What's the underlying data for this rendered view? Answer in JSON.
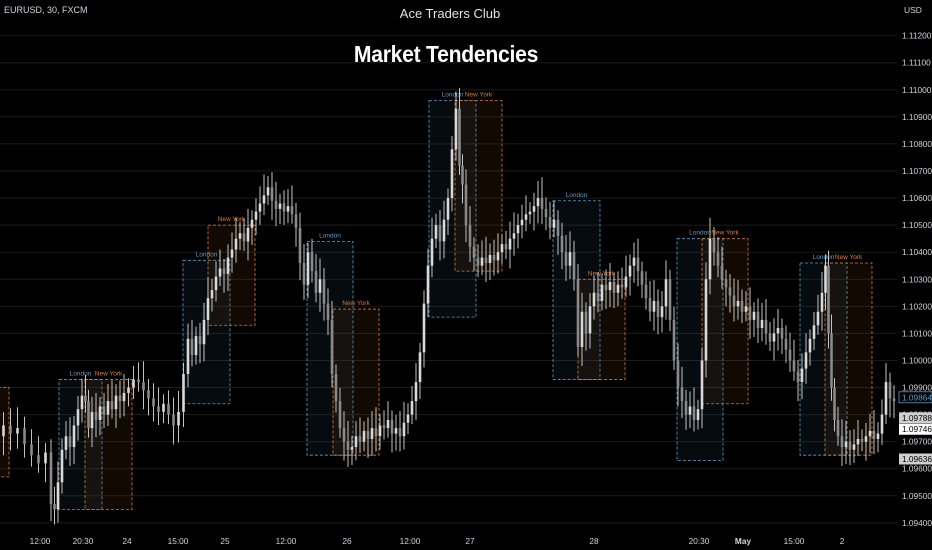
{
  "header": {
    "symbol": "EURUSD, 30, FXCM",
    "brand": "Ace Traders Club",
    "title": "Market Tendencies",
    "currency": "USD"
  },
  "colors": {
    "background": "#000000",
    "candle": "#d9d9d9",
    "london": "#5b9fc7",
    "new_york": "#e07a2f",
    "grid": "#1c1c1c",
    "axis_text": "#d1d4dc"
  },
  "chart_data": {
    "type": "candlestick",
    "title": "Market Tendencies",
    "y_axis": {
      "unit": "USD",
      "range": [
        1.0937,
        1.1128
      ],
      "ticks": [
        1.094,
        1.095,
        1.096,
        1.097,
        1.098,
        1.099,
        1.1,
        1.101,
        1.102,
        1.103,
        1.104,
        1.105,
        1.106,
        1.107,
        1.108,
        1.109,
        1.11,
        1.111,
        1.112
      ],
      "tick_labels": [
        "1.09400",
        "1.09500",
        "1.09600",
        "1.09700",
        "1.09800",
        "1.09900",
        "1.10000",
        "1.10100",
        "1.10200",
        "1.10300",
        "1.10400",
        "1.10500",
        "1.10600",
        "1.10700",
        "1.10800",
        "1.10900",
        "1.11000",
        "1.11100",
        "1.11200"
      ]
    },
    "x_axis": {
      "labels": [
        "12:00",
        "20:30",
        "24",
        "15:00",
        "25",
        "12:00",
        "26",
        "12:00",
        "27",
        "28",
        "20:30",
        "May",
        "15:00",
        "2"
      ],
      "bold": [
        "May"
      ]
    },
    "price_markers": [
      {
        "value": 1.09864,
        "label": "1.09864",
        "style": "outline"
      },
      {
        "value": 1.09788,
        "label": "1.09788",
        "style": "gray"
      },
      {
        "value": 1.09746,
        "label": "1.09746",
        "style": "white"
      },
      {
        "value": 1.09636,
        "label": "1.09636",
        "style": "gray"
      }
    ],
    "series": [
      {
        "name": "EURUSD",
        "points": [
          [
            0,
            1.0972
          ],
          [
            7,
            1.0976
          ],
          [
            14,
            1.0973
          ],
          [
            21,
            1.0975
          ],
          [
            28,
            1.0969
          ],
          [
            35,
            1.0965
          ],
          [
            42,
            1.0962
          ],
          [
            49,
            1.0966
          ],
          [
            53,
            1.0947
          ],
          [
            56,
            1.0945
          ],
          [
            60,
            1.0955
          ],
          [
            64,
            1.0967
          ],
          [
            68,
            1.0972
          ],
          [
            72,
            1.0968
          ],
          [
            76,
            1.0976
          ],
          [
            80,
            1.0982
          ],
          [
            84,
            1.0987
          ],
          [
            87,
            1.0985
          ],
          [
            90,
            1.0975
          ],
          [
            94,
            1.0981
          ],
          [
            98,
            1.0978
          ],
          [
            102,
            1.0983
          ],
          [
            106,
            1.098
          ],
          [
            110,
            1.0985
          ],
          [
            114,
            1.0982
          ],
          [
            118,
            1.0987
          ],
          [
            122,
            1.0985
          ],
          [
            126,
            1.0988
          ],
          [
            131,
            1.099
          ],
          [
            136,
            1.0993
          ],
          [
            141,
            1.0992
          ],
          [
            146,
            1.0989
          ],
          [
            151,
            1.0986
          ],
          [
            156,
            1.0983
          ],
          [
            161,
            1.0981
          ],
          [
            166,
            1.0984
          ],
          [
            171,
            1.098
          ],
          [
            176,
            1.0976
          ],
          [
            181,
            1.0981
          ],
          [
            186,
            1.0995
          ],
          [
            190,
            1.1008
          ],
          [
            194,
            1.1002
          ],
          [
            198,
            1.1009
          ],
          [
            202,
            1.1006
          ],
          [
            206,
            1.1015
          ],
          [
            210,
            1.1023
          ],
          [
            214,
            1.1026
          ],
          [
            218,
            1.1031
          ],
          [
            222,
            1.1034
          ],
          [
            226,
            1.1032
          ],
          [
            230,
            1.1038
          ],
          [
            234,
            1.1041
          ],
          [
            238,
            1.1045
          ],
          [
            242,
            1.1047
          ],
          [
            246,
            1.1044
          ],
          [
            250,
            1.1049
          ],
          [
            254,
            1.1052
          ],
          [
            258,
            1.1055
          ],
          [
            262,
            1.1058
          ],
          [
            266,
            1.1061
          ],
          [
            270,
            1.1064
          ],
          [
            274,
            1.1059
          ],
          [
            278,
            1.1056
          ],
          [
            282,
            1.1058
          ],
          [
            286,
            1.1055
          ],
          [
            290,
            1.1057
          ],
          [
            294,
            1.1054
          ],
          [
            298,
            1.1049
          ],
          [
            302,
            1.1036
          ],
          [
            306,
            1.1028
          ],
          [
            310,
            1.104
          ],
          [
            314,
            1.1033
          ],
          [
            318,
            1.1025
          ],
          [
            322,
            1.103
          ],
          [
            326,
            1.1021
          ],
          [
            330,
            1.1015
          ],
          [
            334,
            1.0995
          ],
          [
            338,
            1.0985
          ],
          [
            342,
            1.0975
          ],
          [
            346,
            1.097
          ],
          [
            350,
            1.0967
          ],
          [
            354,
            1.0968
          ],
          [
            358,
            1.0972
          ],
          [
            362,
            1.097
          ],
          [
            366,
            1.0974
          ],
          [
            370,
            1.0971
          ],
          [
            374,
            1.0975
          ],
          [
            378,
            1.0972
          ],
          [
            382,
            1.0976
          ],
          [
            386,
            1.0975
          ],
          [
            390,
            1.0978
          ],
          [
            394,
            1.0973
          ],
          [
            398,
            1.0975
          ],
          [
            402,
            1.0972
          ],
          [
            406,
            1.0977
          ],
          [
            410,
            1.098
          ],
          [
            414,
            1.0985
          ],
          [
            418,
            1.0992
          ],
          [
            422,
            1.1003
          ],
          [
            426,
            1.1021
          ],
          [
            430,
            1.1035
          ],
          [
            434,
            1.1045
          ],
          [
            438,
            1.105
          ],
          [
            442,
            1.1044
          ],
          [
            446,
            1.1052
          ],
          [
            450,
            1.106
          ],
          [
            454,
            1.1078
          ],
          [
            458,
            1.1093
          ],
          [
            461,
            1.1072
          ],
          [
            464,
            1.1065
          ],
          [
            468,
            1.105
          ],
          [
            472,
            1.1042
          ],
          [
            476,
            1.1038
          ],
          [
            480,
            1.1035
          ],
          [
            484,
            1.1038
          ],
          [
            488,
            1.1036
          ],
          [
            492,
            1.1039
          ],
          [
            496,
            1.1037
          ],
          [
            500,
            1.104
          ],
          [
            504,
            1.1043
          ],
          [
            508,
            1.1041
          ],
          [
            512,
            1.1045
          ],
          [
            516,
            1.1047
          ],
          [
            520,
            1.105
          ],
          [
            524,
            1.1052
          ],
          [
            528,
            1.1054
          ],
          [
            532,
            1.1055
          ],
          [
            536,
            1.1057
          ],
          [
            540,
            1.106
          ],
          [
            544,
            1.1056
          ],
          [
            548,
            1.1053
          ],
          [
            552,
            1.1049
          ],
          [
            556,
            1.1052
          ],
          [
            560,
            1.1046
          ],
          [
            564,
            1.104
          ],
          [
            568,
            1.1035
          ],
          [
            572,
            1.104
          ],
          [
            576,
            1.103
          ],
          [
            580,
            1.1005
          ],
          [
            584,
            1.1018
          ],
          [
            588,
            1.101
          ],
          [
            592,
            1.102
          ],
          [
            596,
            1.1025
          ],
          [
            600,
            1.1022
          ],
          [
            604,
            1.1028
          ],
          [
            608,
            1.1026
          ],
          [
            612,
            1.1029
          ],
          [
            616,
            1.1025
          ],
          [
            620,
            1.1028
          ],
          [
            624,
            1.1027
          ],
          [
            628,
            1.1031
          ],
          [
            632,
            1.1035
          ],
          [
            636,
            1.1038
          ],
          [
            640,
            1.1033
          ],
          [
            644,
            1.1028
          ],
          [
            648,
            1.1023
          ],
          [
            652,
            1.1018
          ],
          [
            656,
            1.1022
          ],
          [
            660,
            1.1016
          ],
          [
            664,
            1.102
          ],
          [
            668,
            1.103
          ],
          [
            672,
            1.1015
          ],
          [
            676,
            1.1
          ],
          [
            680,
            1.099
          ],
          [
            684,
            1.0985
          ],
          [
            688,
            1.098
          ],
          [
            692,
            1.0983
          ],
          [
            696,
            1.0978
          ],
          [
            700,
            1.0982
          ],
          [
            704,
            1.1
          ],
          [
            708,
            1.103
          ],
          [
            712,
            1.1045
          ],
          [
            716,
            1.104
          ],
          [
            720,
            1.1035
          ],
          [
            724,
            1.103
          ],
          [
            728,
            1.1027
          ],
          [
            732,
            1.1024
          ],
          [
            736,
            1.102
          ],
          [
            740,
            1.1022
          ],
          [
            744,
            1.1018
          ],
          [
            748,
            1.102
          ],
          [
            752,
            1.1015
          ],
          [
            756,
            1.1018
          ],
          [
            760,
            1.1012
          ],
          [
            764,
            1.1015
          ],
          [
            768,
            1.101
          ],
          [
            772,
            1.1007
          ],
          [
            776,
            1.101
          ],
          [
            780,
            1.1012
          ],
          [
            784,
            1.1008
          ],
          [
            788,
            1.1004
          ],
          [
            792,
            1.1
          ],
          [
            796,
            1.0996
          ],
          [
            800,
            1.0992
          ],
          [
            804,
            1.0997
          ],
          [
            808,
            1.1003
          ],
          [
            812,
            1.1008
          ],
          [
            816,
            1.1013
          ],
          [
            820,
            1.1018
          ],
          [
            824,
            1.1025
          ],
          [
            827,
            1.1035
          ],
          [
            830,
            1.101
          ],
          [
            833,
            1.099
          ],
          [
            836,
            1.0978
          ],
          [
            840,
            1.0972
          ],
          [
            844,
            1.0968
          ],
          [
            848,
            1.097
          ],
          [
            852,
            1.0967
          ],
          [
            856,
            1.0969
          ],
          [
            860,
            1.0971
          ],
          [
            864,
            1.097
          ],
          [
            868,
            1.0972
          ],
          [
            872,
            1.0974
          ],
          [
            876,
            1.0971
          ],
          [
            880,
            1.0973
          ],
          [
            884,
            1.098
          ],
          [
            888,
            1.0992
          ],
          [
            892,
            1.0986
          ],
          [
            896,
            1.0985
          ]
        ]
      }
    ],
    "sessions": [
      {
        "name": "London",
        "x_from": 59,
        "x_to": 102,
        "high": 1.0993,
        "low": 1.0945,
        "label_position": "top"
      },
      {
        "name": "New York",
        "x_from": 85,
        "x_to": 132,
        "high": 1.0993,
        "low": 1.0945,
        "label_position": "top"
      },
      {
        "name": "London",
        "x_from": 183,
        "x_to": 230,
        "high": 1.1037,
        "low": 1.0984,
        "label_position": "top"
      },
      {
        "name": "New York",
        "x_from": 208,
        "x_to": 255,
        "high": 1.105,
        "low": 1.1013,
        "label_position": "top"
      },
      {
        "name": "London",
        "x_from": 307,
        "x_to": 353,
        "high": 1.1044,
        "low": 1.0965,
        "label_position": "top"
      },
      {
        "name": "New York",
        "x_from": 333,
        "x_to": 379,
        "high": 1.1019,
        "low": 1.0965,
        "label_position": "top"
      },
      {
        "name": "London",
        "x_from": 429,
        "x_to": 476,
        "high": 1.1096,
        "low": 1.1016,
        "label_position": "top"
      },
      {
        "name": "New York",
        "x_from": 455,
        "x_to": 502,
        "high": 1.1096,
        "low": 1.1033,
        "label_position": "top"
      },
      {
        "name": "London",
        "x_from": 553,
        "x_to": 600,
        "high": 1.1059,
        "low": 1.0993,
        "label_position": "top"
      },
      {
        "name": "New York",
        "x_from": 578,
        "x_to": 625,
        "high": 1.103,
        "low": 1.0993,
        "label_position": "top"
      },
      {
        "name": "London",
        "x_from": 677,
        "x_to": 723,
        "high": 1.1045,
        "low": 1.0963,
        "label_position": "top"
      },
      {
        "name": "New York",
        "x_from": 702,
        "x_to": 748,
        "high": 1.1045,
        "low": 1.0984,
        "label_position": "top"
      },
      {
        "name": "London",
        "x_from": 800,
        "x_to": 847,
        "high": 1.1036,
        "low": 1.0965,
        "label_position": "top"
      },
      {
        "name": "New York",
        "x_from": 825,
        "x_to": 872,
        "high": 1.1036,
        "low": 1.0965,
        "label_position": "top"
      }
    ]
  }
}
